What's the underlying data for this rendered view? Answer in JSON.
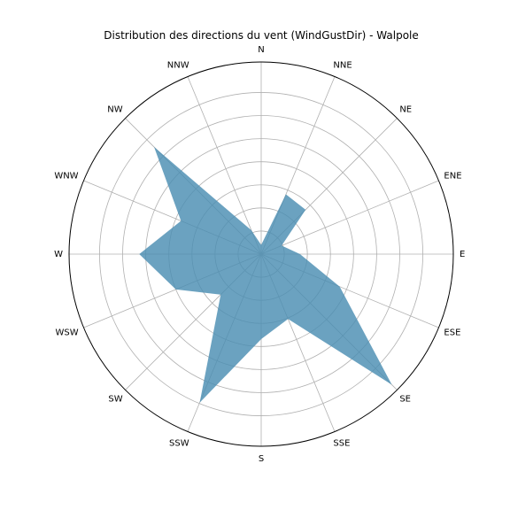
{
  "chart_data": {
    "type": "radar-area",
    "title": "Distribution des directions du vent (WindGustDir) - Walpole",
    "directions": [
      "N",
      "NNE",
      "NE",
      "ENE",
      "E",
      "ESE",
      "SE",
      "SSE",
      "S",
      "SSW",
      "SW",
      "WSW",
      "W",
      "WNW",
      "NW",
      "NNW"
    ],
    "values": [
      5,
      35,
      34,
      12,
      21,
      46,
      100,
      38,
      46,
      87,
      31,
      50,
      66,
      47,
      82,
      14
    ],
    "rmax": 104,
    "rings": [
      12.5,
      25,
      37.5,
      50,
      62.5,
      75,
      87.5
    ],
    "rotation": "clockwise, N at top",
    "color": "#4a8eb2",
    "grid": true
  }
}
